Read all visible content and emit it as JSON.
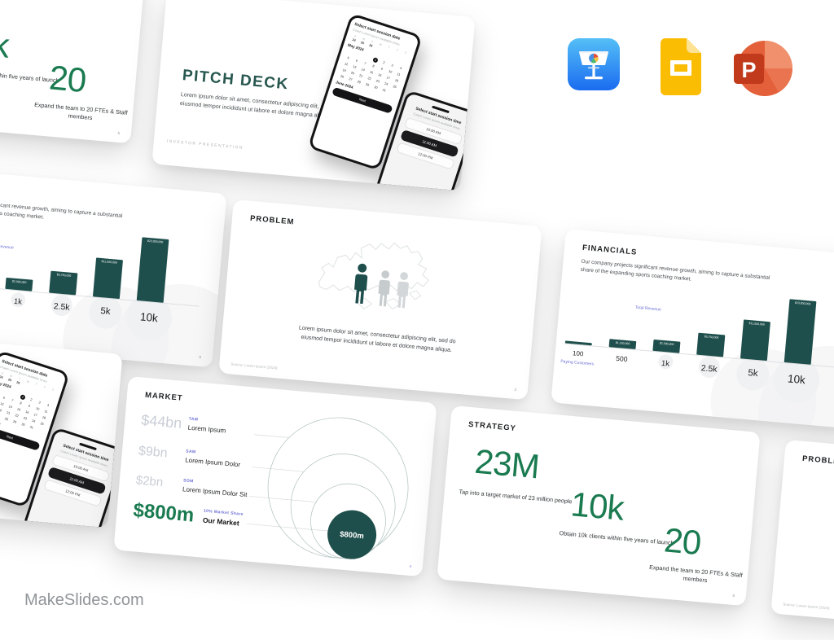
{
  "site": {
    "brand": "MakeSlides.com"
  },
  "apps": {
    "keynote": "Keynote",
    "google_slides": "Google Slides",
    "powerpoint": "PowerPoint"
  },
  "colors": {
    "accent_green": "#1a7a50",
    "dark_teal": "#1f4f4c",
    "title_teal": "#27574f",
    "purple_label": "#6b6fd4",
    "muted_gray_value": "#c9ced6"
  },
  "slides": {
    "cover": {
      "title": "PITCH DECK",
      "body": "Lorem ipsum dolor sit amet, consectetur adipiscing elit, sed do eiusmod tempor incididunt ut labore et dolore magna aliqua",
      "footer": "INVESTOR PRESENTATION",
      "phone_date": {
        "title": "Select start session date",
        "subtitle": "Coach Lorem Ipsum available times",
        "weekdays": [
          "S",
          "M",
          "T",
          "W",
          "T",
          "F",
          "S"
        ],
        "prev_days": [
          "24",
          "25",
          "26",
          "",
          "",
          "",
          ""
        ],
        "month1": "May 2024",
        "days": [
          "",
          "",
          "",
          "1",
          "2",
          "3",
          "4",
          "5",
          "6",
          "7",
          "8",
          "9",
          "10",
          "11",
          "12",
          "13",
          "14",
          "15",
          "16",
          "17",
          "18",
          "19",
          "20",
          "21",
          "22",
          "23",
          "24",
          "25",
          "26",
          "27",
          "28",
          "29",
          "30",
          "31"
        ],
        "selected_day": "1",
        "month2": "June 2024",
        "button": "Next"
      },
      "phone_time": {
        "title": "Select start session time",
        "subtitle": "Coach Lorem Ipsum available times",
        "times": [
          "10:00 AM",
          "11:00 AM",
          "12:00 PM"
        ],
        "selected_index": 1
      }
    },
    "problem": {
      "heading": "PROBLEM",
      "body": "Lorem ipsum dolor sit amet, consectetur adipiscing elit, sed do eiusmod tempor incididunt ut labore et dolore magna aliqua.",
      "source": "Source: Lorem Ipsum (2024)",
      "page": "3"
    },
    "market": {
      "heading": "MARKET",
      "rows": [
        {
          "value": "$44bn",
          "tag": "TAM",
          "name": "Lorem Ipsum"
        },
        {
          "value": "$9bn",
          "tag": "SAM",
          "name": "Lorem Ipsum Dolor"
        },
        {
          "value": "$2bn",
          "tag": "SOM",
          "name": "Lorem Ipsum Dolor Sit"
        },
        {
          "value": "$800m",
          "tag": "10% Market Share",
          "name": "Our Market"
        }
      ],
      "bubble_label": "$800m",
      "page": "4"
    },
    "strategy": {
      "heading": "STRATEGY",
      "stats": [
        {
          "value": "23M",
          "caption": "Tap into a target market of 23 million people"
        },
        {
          "value": "10k",
          "caption": "Obtain 10k clients within five years of launch"
        },
        {
          "value": "20",
          "caption": "Expand the team to 20 FTEs & Staff members"
        }
      ],
      "page": "5"
    },
    "financials": {
      "heading": "FINANCIALS",
      "intro": "Our company projects significant revenue growth, aiming to capture a substantial share of the expanding sports coaching market.",
      "chart_data": {
        "type": "bar",
        "categories": [
          "100",
          "500",
          "1k",
          "2.5k",
          "5k",
          "10k"
        ],
        "values": [
          230000,
          1150000,
          2300000,
          5750000,
          11500000,
          23000000
        ],
        "bar_labels": [
          "$230,000",
          "$1,150,000",
          "$2,300,000",
          "$5,750,000",
          "$11,500,000",
          "$23,000,000"
        ],
        "ylabel": "Total Revenue",
        "xlabel": "Paying Customers",
        "bar_color": "#1f4f4c"
      },
      "page": "6"
    }
  }
}
